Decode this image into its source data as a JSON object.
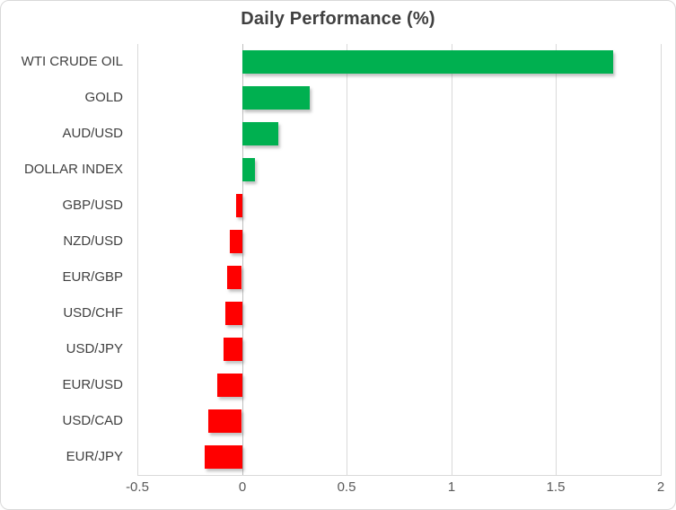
{
  "chart_data": {
    "type": "bar",
    "orientation": "horizontal",
    "title": "Daily Performance (%)",
    "categories": [
      "WTI CRUDE OIL",
      "GOLD",
      "AUD/USD",
      "DOLLAR INDEX",
      "GBP/USD",
      "NZD/USD",
      "EUR/GBP",
      "USD/CHF",
      "USD/JPY",
      "EUR/USD",
      "USD/CAD",
      "EUR/JPY"
    ],
    "values": [
      1.77,
      0.32,
      0.17,
      0.06,
      -0.03,
      -0.06,
      -0.07,
      -0.08,
      -0.09,
      -0.12,
      -0.16,
      -0.18
    ],
    "xlabel": "",
    "ylabel": "",
    "xlim": [
      -0.5,
      2
    ],
    "xticks": [
      -0.5,
      0,
      0.5,
      1,
      1.5,
      2
    ],
    "xtick_labels": [
      "-0.5",
      "0",
      "0.5",
      "1",
      "1.5",
      "2"
    ],
    "grid": true,
    "legend": false,
    "colors": {
      "positive": "#00B050",
      "negative": "#FF0000",
      "gridline": "#D9D9D9",
      "zero_line": "#BFBFBF",
      "title_text": "#404040",
      "category_text": "#404040",
      "tick_text": "#595959",
      "frame_border": "#D9D9D9",
      "background": "#FFFFFF"
    }
  }
}
